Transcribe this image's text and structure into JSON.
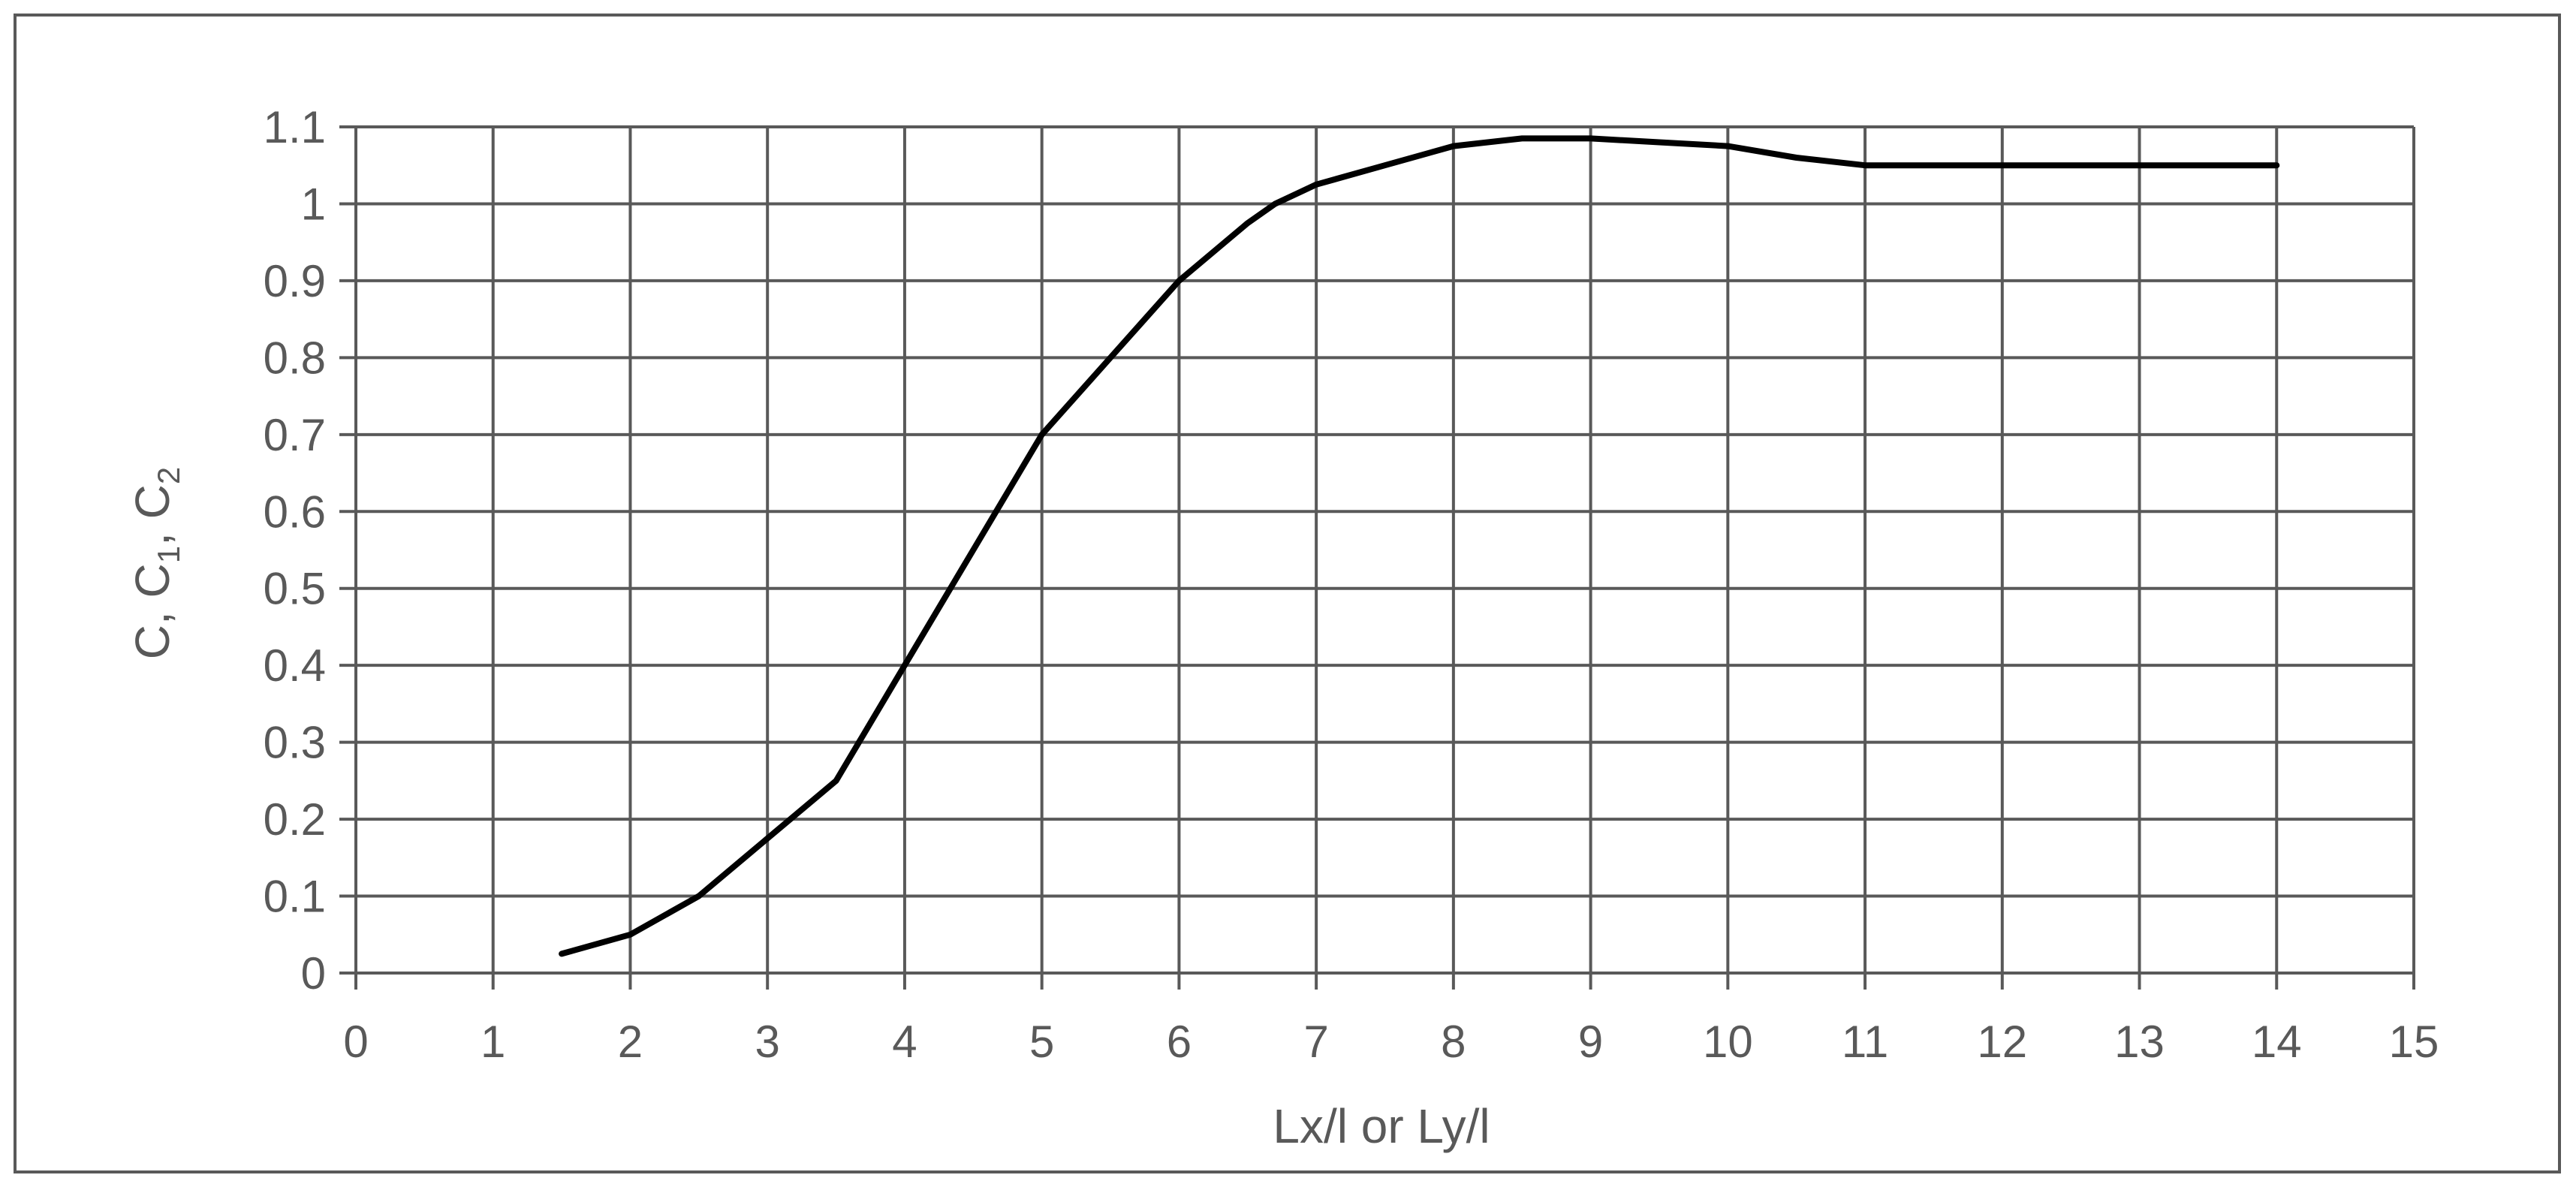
{
  "chart_data": {
    "type": "line",
    "xlabel": "Lx/l or Ly/l",
    "ylabel": "C, C1, C2",
    "ylabel_parts": [
      "C, C",
      "1",
      ", C",
      "2"
    ],
    "xlim": [
      0,
      15
    ],
    "ylim": [
      0,
      1.1
    ],
    "x_ticks": [
      "0",
      "1",
      "2",
      "3",
      "4",
      "5",
      "6",
      "7",
      "8",
      "9",
      "10",
      "11",
      "12",
      "13",
      "14",
      "15"
    ],
    "y_ticks": [
      "0",
      "0.1",
      "0.2",
      "0.3",
      "0.4",
      "0.5",
      "0.6",
      "0.7",
      "0.8",
      "0.9",
      "1",
      "1.1"
    ],
    "grid": true,
    "legend": false,
    "series": [
      {
        "color": "#000000",
        "x": [
          1.5,
          2,
          2.5,
          3,
          3.5,
          4,
          4.5,
          5,
          5.5,
          6,
          6.5,
          6.7,
          7,
          7.5,
          8,
          8.5,
          9,
          9.5,
          10,
          10.5,
          11,
          11.5,
          12,
          12.5,
          13,
          13.5,
          14
        ],
        "y": [
          0.025,
          0.05,
          0.1,
          0.175,
          0.25,
          0.4,
          0.55,
          0.7,
          0.8,
          0.9,
          0.975,
          1.0,
          1.025,
          1.05,
          1.075,
          1.085,
          1.085,
          1.08,
          1.075,
          1.06,
          1.05,
          1.05,
          1.05,
          1.05,
          1.05,
          1.05,
          1.05
        ]
      }
    ]
  }
}
